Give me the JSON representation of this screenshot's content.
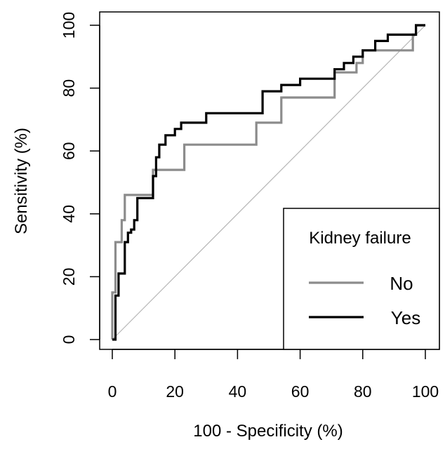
{
  "chart_data": {
    "type": "line",
    "title": "",
    "xlabel": "100 - Specificity (%)",
    "ylabel": "Sensitivity (%)",
    "xlim": [
      0,
      100
    ],
    "ylim": [
      0,
      100
    ],
    "xticks": [
      "0",
      "20",
      "40",
      "60",
      "80",
      "100"
    ],
    "yticks": [
      "0",
      "20",
      "40",
      "60",
      "80",
      "100"
    ],
    "grid": false,
    "reference_line": {
      "x": [
        0,
        100
      ],
      "y": [
        0,
        100
      ],
      "color": "#b5b5b5"
    },
    "legend": {
      "title": "Kidney failure",
      "position": "bottom-right"
    },
    "series": [
      {
        "name": "No",
        "color": "#8c8c8c",
        "x": [
          0,
          0,
          1,
          1,
          3,
          3,
          4,
          4,
          13,
          13,
          23,
          23,
          46,
          46,
          54,
          54,
          71,
          71,
          74,
          74,
          78,
          78,
          80,
          80,
          96,
          96,
          97,
          97,
          100
        ],
        "y": [
          0,
          15,
          15,
          31,
          31,
          38,
          38,
          46,
          46,
          54,
          54,
          62,
          62,
          69,
          69,
          77,
          77,
          85,
          85,
          85,
          85,
          88,
          88,
          92,
          92,
          97,
          97,
          100,
          100
        ]
      },
      {
        "name": "Yes",
        "color": "#000000",
        "x": [
          0,
          1,
          1,
          2,
          2,
          4,
          4,
          5,
          5,
          6,
          6,
          7,
          7,
          8,
          8,
          13,
          13,
          14,
          14,
          15,
          15,
          17,
          17,
          20,
          20,
          22,
          22,
          30,
          30,
          48,
          48,
          54,
          54,
          60,
          60,
          71,
          71,
          74,
          74,
          77,
          77,
          80,
          80,
          84,
          84,
          88,
          88,
          95,
          95,
          97,
          97,
          100
        ],
        "y": [
          0,
          0,
          14,
          14,
          21,
          21,
          31,
          31,
          34,
          34,
          35,
          35,
          38,
          38,
          45,
          45,
          52,
          52,
          58,
          58,
          62,
          62,
          65,
          65,
          67,
          67,
          69,
          69,
          72,
          72,
          79,
          79,
          81,
          81,
          83,
          83,
          86,
          86,
          88,
          88,
          90,
          90,
          92,
          92,
          95,
          95,
          97,
          97,
          97,
          97,
          100,
          100
        ]
      }
    ]
  }
}
